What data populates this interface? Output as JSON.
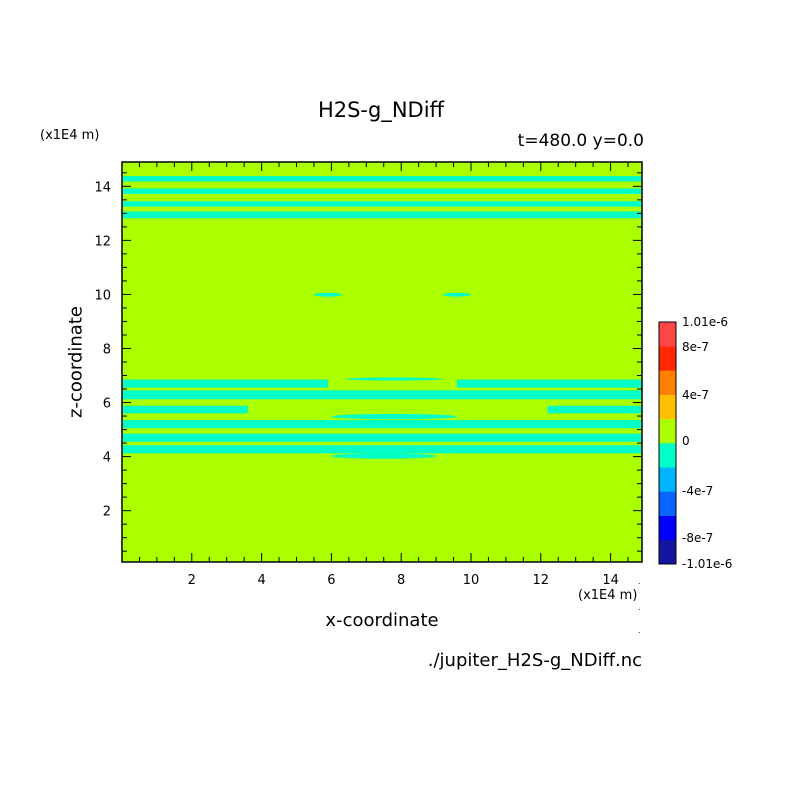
{
  "chart_data": {
    "type": "heatmap",
    "title": "H2S-g_NDiff",
    "subtitle": "t=480.0 y=0.0",
    "xlabel": "x-coordinate",
    "ylabel": "z-coordinate",
    "x_unit": "(x1E4 m)",
    "z_unit": "(x1E4 m)",
    "source_file": "./jupiter_H2S-g_NDiff.nc",
    "xlim": [
      0.0,
      14.9
    ],
    "ylim": [
      0.1,
      14.9
    ],
    "x_ticks": [
      2,
      4,
      6,
      8,
      10,
      12,
      14
    ],
    "y_ticks": [
      2,
      4,
      6,
      8,
      10,
      12,
      14
    ],
    "background_level": "0",
    "colorbar": {
      "labels": [
        "1.01e-6",
        "8e-7",
        "4e-7",
        "0",
        "-4e-7",
        "-8e-7",
        "-1.01e-6"
      ],
      "colors": [
        "#1414a0",
        "#0000ff",
        "#0a64ff",
        "#00b4ff",
        "#00ffc8",
        "#aaff00",
        "#ffbe00",
        "#ff8000",
        "#ff2800",
        "#ff4646"
      ]
    },
    "colors": {
      "background": "#aaff00",
      "negative_band": "#00ffc8"
    },
    "bands": [
      {
        "z0": 14.18,
        "z1": 14.38
      },
      {
        "z0": 13.72,
        "z1": 13.92
      },
      {
        "z0": 13.25,
        "z1": 13.45
      },
      {
        "z0": 12.82,
        "z1": 13.07
      },
      {
        "z0": 6.55,
        "z1": 6.85,
        "x_gap": [
          5.9,
          9.6
        ]
      },
      {
        "z0": 6.12,
        "z1": 6.45
      },
      {
        "z0": 5.6,
        "z1": 5.88,
        "x_gap": [
          3.6,
          12.2
        ]
      },
      {
        "z0": 5.05,
        "z1": 5.35
      },
      {
        "z0": 4.55,
        "z1": 4.85
      },
      {
        "z0": 4.12,
        "z1": 4.42
      }
    ],
    "features": [
      {
        "x0": 5.5,
        "x1": 6.3,
        "z0": 9.92,
        "z1": 10.06
      },
      {
        "x0": 9.2,
        "x1": 10.0,
        "z0": 9.92,
        "z1": 10.06
      },
      {
        "x0": 6.4,
        "x1": 9.2,
        "z0": 6.82,
        "z1": 6.92
      },
      {
        "x0": 6.0,
        "x1": 9.6,
        "z0": 5.38,
        "z1": 5.58
      },
      {
        "x0": 6.0,
        "x1": 9.0,
        "z0": 3.92,
        "z1": 4.12
      }
    ]
  }
}
